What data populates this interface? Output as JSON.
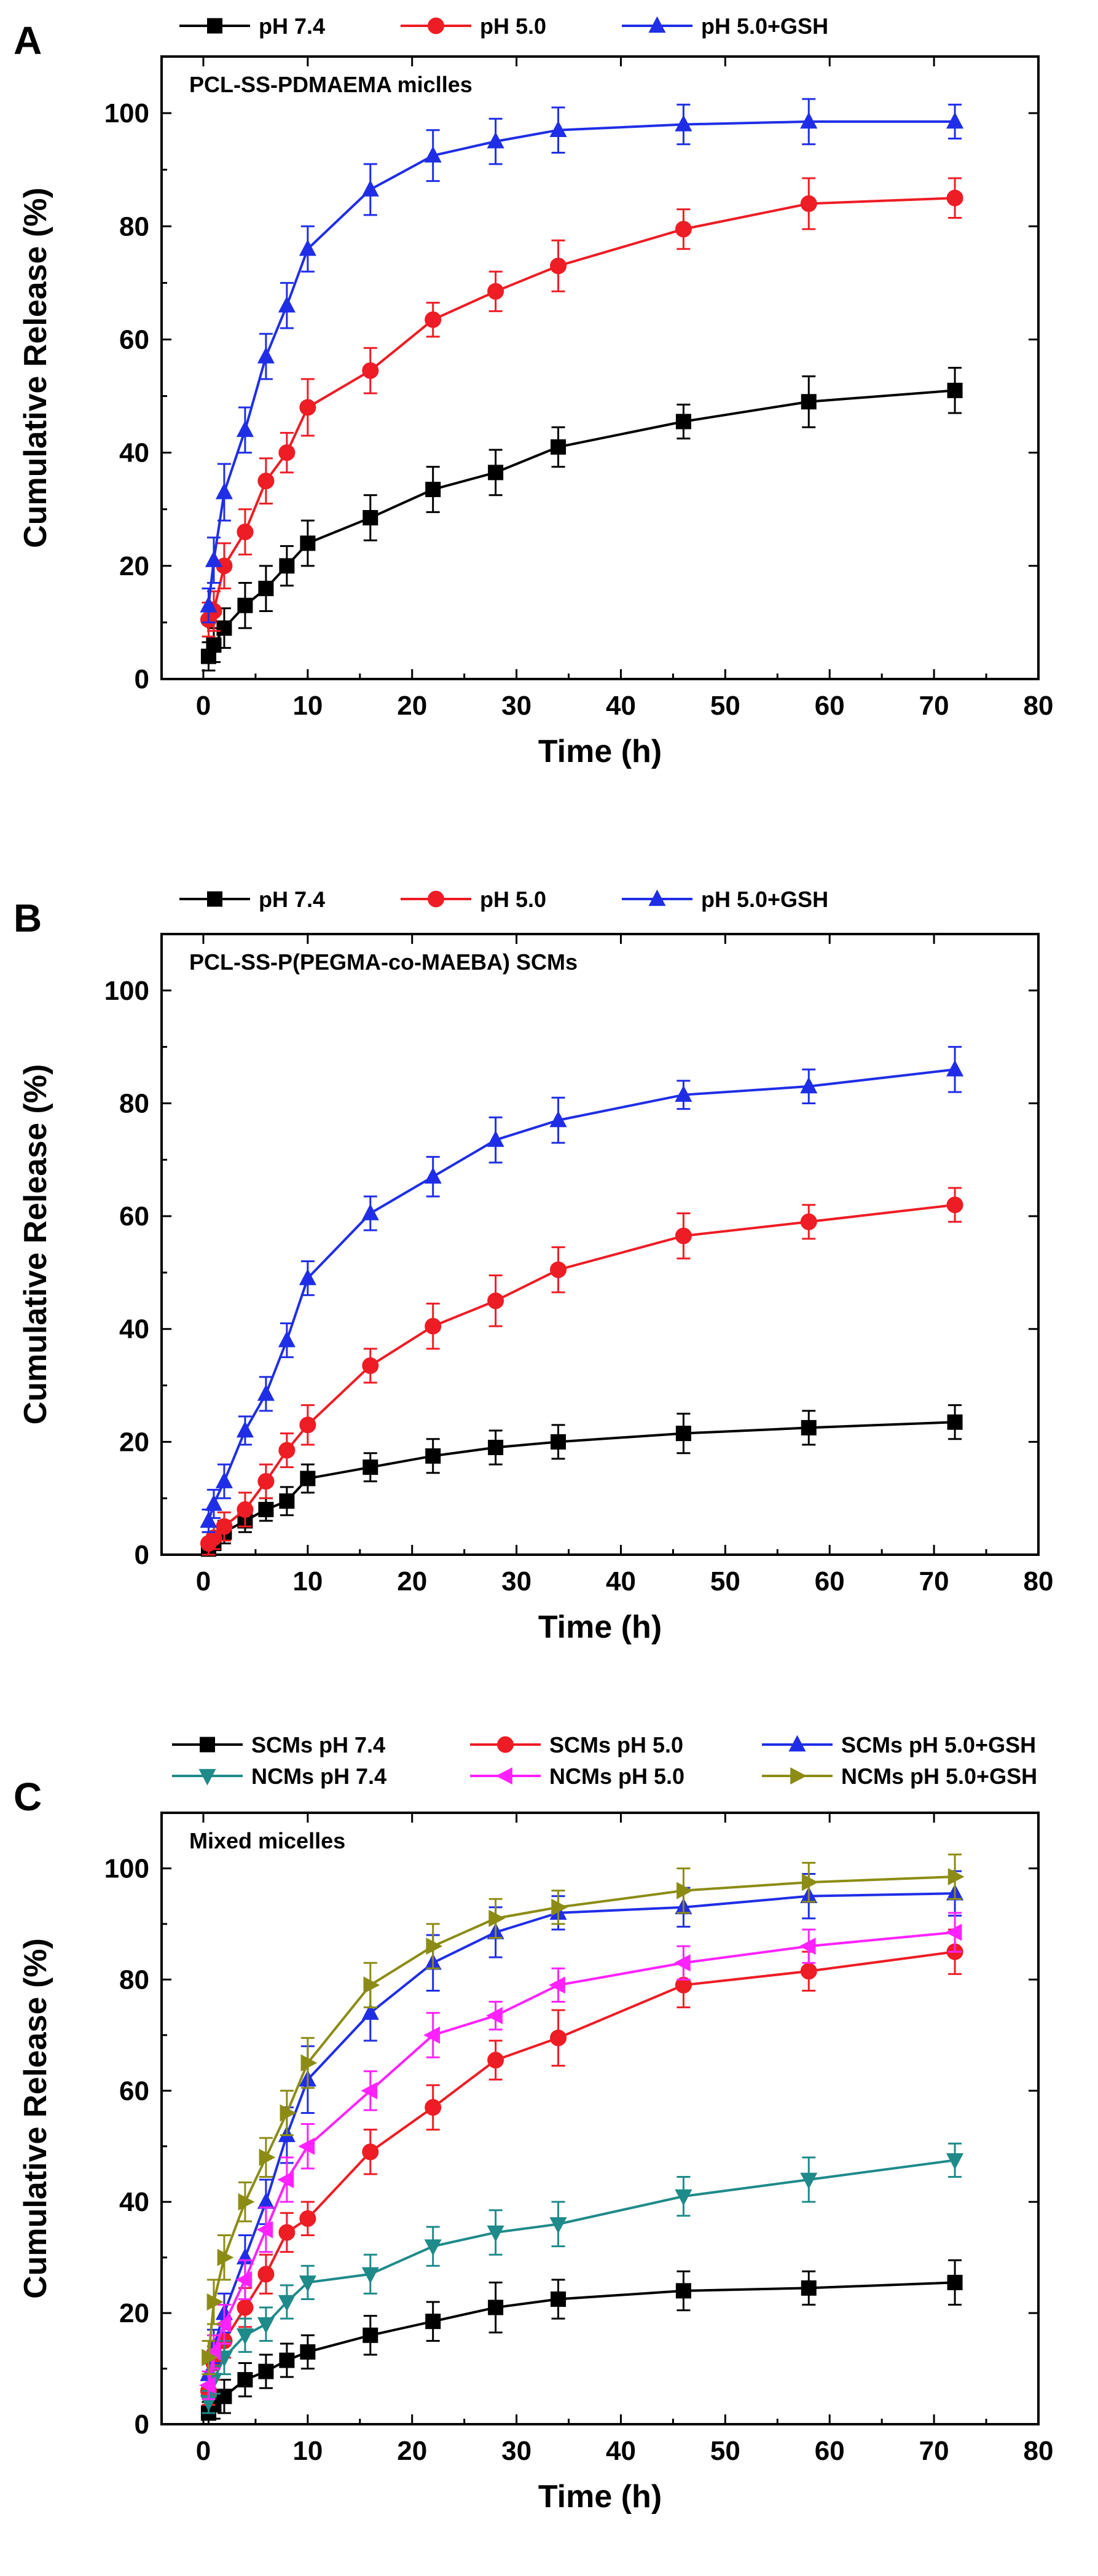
{
  "chart_data": [
    {
      "type": "line",
      "panel": "A",
      "title": "PCL-SS-PDMAEMA miclles",
      "xlabel": "Time (h)",
      "ylabel": "Cumulative Release (%)",
      "xlim": [
        -4,
        80
      ],
      "ylim": [
        0,
        110
      ],
      "xticks": [
        "0",
        "10",
        "20",
        "30",
        "40",
        "50",
        "60",
        "70",
        "80"
      ],
      "yticks": [
        "0",
        "20",
        "40",
        "60",
        "80",
        "100"
      ],
      "legend_position": "top",
      "series": [
        {
          "name": "pH 7.4",
          "color": "#000000",
          "marker": "square",
          "x": [
            0.5,
            1,
            2,
            4,
            6,
            8,
            10,
            16,
            22,
            28,
            34,
            46,
            58,
            72
          ],
          "y": [
            4,
            6,
            9,
            13,
            16,
            20,
            24,
            28.5,
            33.5,
            36.5,
            41,
            45.5,
            49,
            51
          ],
          "err": [
            2.5,
            3,
            3.5,
            4,
            4,
            3.5,
            4,
            4,
            4,
            4,
            3.5,
            3,
            4.5,
            4
          ]
        },
        {
          "name": "pH 5.0",
          "color": "#ee1c24",
          "marker": "circle",
          "x": [
            0.5,
            1,
            2,
            4,
            6,
            8,
            10,
            16,
            22,
            28,
            34,
            46,
            58,
            72
          ],
          "y": [
            10.5,
            12,
            20,
            26,
            35,
            40,
            48,
            54.5,
            63.5,
            68.5,
            73,
            79.5,
            84,
            85
          ],
          "err": [
            3,
            3.5,
            4,
            4,
            4,
            3.5,
            5,
            4,
            3,
            3.5,
            4.5,
            3.5,
            4.5,
            3.5
          ]
        },
        {
          "name": "pH 5.0+GSH",
          "color": "#1f2ee6",
          "marker": "triangle",
          "x": [
            0.5,
            1,
            2,
            4,
            6,
            8,
            10,
            16,
            22,
            28,
            34,
            46,
            58,
            72
          ],
          "y": [
            13,
            21,
            33,
            44,
            57,
            66,
            76,
            86.5,
            92.5,
            95,
            97,
            98,
            98.5,
            98.5
          ],
          "err": [
            3,
            4,
            5,
            4,
            4,
            4,
            4,
            4.5,
            4.5,
            4,
            4,
            3.5,
            4,
            3
          ]
        }
      ]
    },
    {
      "type": "line",
      "panel": "B",
      "title": "PCL-SS-P(PEGMA-co-MAEBA) SCMs",
      "xlabel": "Time (h)",
      "ylabel": "Cumulative Release (%)",
      "xlim": [
        -4,
        80
      ],
      "ylim": [
        0,
        110
      ],
      "xticks": [
        "0",
        "10",
        "20",
        "30",
        "40",
        "50",
        "60",
        "70",
        "80"
      ],
      "yticks": [
        "0",
        "20",
        "40",
        "60",
        "80",
        "100"
      ],
      "legend_position": "top",
      "series": [
        {
          "name": "pH 7.4",
          "color": "#000000",
          "marker": "square",
          "x": [
            0.5,
            1,
            2,
            4,
            6,
            8,
            10,
            16,
            22,
            28,
            34,
            46,
            58,
            72
          ],
          "y": [
            1,
            2,
            4,
            6,
            8,
            9.5,
            13.5,
            15.5,
            17.5,
            19,
            20,
            21.5,
            22.5,
            23.5
          ],
          "err": [
            1.5,
            2,
            2,
            2,
            2,
            2.5,
            2.5,
            2.5,
            3,
            3,
            3,
            3.5,
            3,
            3
          ]
        },
        {
          "name": "pH 5.0",
          "color": "#ee1c24",
          "marker": "circle",
          "x": [
            0.5,
            1,
            2,
            4,
            6,
            8,
            10,
            16,
            22,
            28,
            34,
            46,
            58,
            72
          ],
          "y": [
            2,
            3,
            5,
            8,
            13,
            18.5,
            23,
            33.5,
            40.5,
            45,
            50.5,
            56.5,
            59,
            62
          ],
          "err": [
            2,
            2,
            2.5,
            3,
            3,
            3,
            3.5,
            3,
            4,
            4.5,
            4,
            4,
            3,
            3
          ]
        },
        {
          "name": "pH 5.0+GSH",
          "color": "#1f2ee6",
          "marker": "triangle",
          "x": [
            0.5,
            1,
            2,
            4,
            6,
            8,
            10,
            16,
            22,
            28,
            34,
            46,
            58,
            72
          ],
          "y": [
            6,
            9,
            13,
            22,
            28.5,
            38,
            49,
            60.5,
            67,
            73.5,
            77,
            81.5,
            83,
            86
          ],
          "err": [
            2,
            2.5,
            3,
            2.5,
            3,
            3,
            3,
            3,
            3.5,
            4,
            4,
            2.5,
            3,
            4
          ]
        }
      ]
    },
    {
      "type": "line",
      "panel": "C",
      "title": "Mixed micelles",
      "xlabel": "Time (h)",
      "ylabel": "Cumulative Release (%)",
      "xlim": [
        -4,
        80
      ],
      "ylim": [
        0,
        110
      ],
      "xticks": [
        "0",
        "10",
        "20",
        "30",
        "40",
        "50",
        "60",
        "70",
        "80"
      ],
      "yticks": [
        "0",
        "20",
        "40",
        "60",
        "80",
        "100"
      ],
      "legend_position": "top",
      "series": [
        {
          "name": "SCMs pH 7.4",
          "color": "#000000",
          "marker": "square",
          "x": [
            0.5,
            1,
            2,
            4,
            6,
            8,
            10,
            16,
            22,
            28,
            34,
            46,
            58,
            72
          ],
          "y": [
            2,
            3.5,
            5,
            8,
            9.5,
            11.5,
            13,
            16,
            18.5,
            21,
            22.5,
            24,
            24.5,
            25.5
          ],
          "err": [
            2,
            2.5,
            3,
            3,
            3,
            3,
            3,
            3.5,
            3.5,
            4.5,
            3.5,
            3.5,
            3,
            4
          ]
        },
        {
          "name": "SCMs pH 5.0",
          "color": "#ee1c24",
          "marker": "circle",
          "x": [
            0.5,
            1,
            2,
            4,
            6,
            8,
            10,
            16,
            22,
            28,
            34,
            46,
            58,
            72
          ],
          "y": [
            6,
            11,
            15,
            21,
            27,
            34.5,
            37,
            49,
            57,
            65.5,
            69.5,
            79,
            81.5,
            85
          ],
          "err": [
            2.5,
            3,
            3,
            3.5,
            3.5,
            3.5,
            3,
            4,
            4,
            3.5,
            5,
            4,
            3.5,
            4
          ]
        },
        {
          "name": "SCMs pH 5.0+GSH",
          "color": "#1f2ee6",
          "marker": "triangle",
          "x": [
            0.5,
            1,
            2,
            4,
            6,
            8,
            10,
            16,
            22,
            28,
            34,
            46,
            58,
            72
          ],
          "y": [
            9,
            14,
            20,
            30,
            40,
            52,
            62,
            74,
            83,
            88.5,
            92,
            93,
            95,
            95.5
          ],
          "err": [
            3,
            3,
            3.5,
            4,
            4,
            5,
            6,
            5,
            5,
            4.5,
            3,
            3.5,
            4,
            4
          ]
        },
        {
          "name": "NCMs pH 7.4",
          "color": "#1f8a8a",
          "marker": "triangle-down",
          "x": [
            0.5,
            1,
            2,
            4,
            6,
            8,
            10,
            16,
            22,
            28,
            34,
            46,
            58,
            72
          ],
          "y": [
            4,
            8,
            12,
            16,
            18,
            22,
            25.5,
            27,
            32,
            34.5,
            36,
            41,
            44,
            47.5
          ],
          "err": [
            2,
            2.5,
            3,
            3,
            3,
            3,
            3,
            3.5,
            3.5,
            4,
            4,
            3.5,
            4,
            3
          ]
        },
        {
          "name": "NCMs pH 5.0",
          "color": "#ff22ff",
          "marker": "triangle-left",
          "x": [
            0.5,
            1,
            2,
            4,
            6,
            8,
            10,
            16,
            22,
            28,
            34,
            46,
            58,
            72
          ],
          "y": [
            7,
            13,
            18,
            26,
            35,
            44,
            50,
            60,
            70,
            73.5,
            79,
            83,
            86,
            88.5
          ],
          "err": [
            2.5,
            3,
            3.5,
            3.5,
            4,
            4,
            4,
            3.5,
            4,
            2.5,
            3,
            3,
            3,
            3.5
          ]
        },
        {
          "name": "NCMs pH 5.0+GSH",
          "color": "#8c8c14",
          "marker": "triangle-right",
          "x": [
            0.5,
            1,
            2,
            4,
            6,
            8,
            10,
            16,
            22,
            28,
            34,
            46,
            58,
            72
          ],
          "y": [
            12,
            22,
            30,
            40,
            48,
            56,
            65,
            79,
            86,
            91,
            93,
            96,
            97.5,
            98.5
          ],
          "err": [
            3,
            4,
            4,
            3.5,
            3.5,
            4,
            4.5,
            4,
            4,
            3.5,
            3,
            4,
            3.5,
            4
          ]
        }
      ]
    }
  ]
}
